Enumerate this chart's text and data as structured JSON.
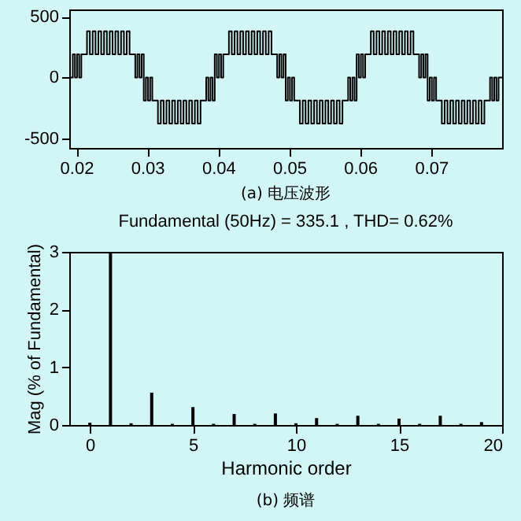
{
  "chart_data": [
    {
      "type": "step",
      "color": "#000000",
      "xlim": [
        0.019,
        0.08
      ],
      "xticks": [
        0.02,
        0.03,
        0.04,
        0.05,
        0.06,
        0.07
      ],
      "ylim": [
        -580,
        560
      ],
      "yticks": [
        -500,
        0,
        500
      ],
      "annotations": [
        "(a) 电压波形"
      ],
      "x": [
        0.019,
        0.0195,
        0.0198,
        0.0201,
        0.0204,
        0.0207,
        0.0215,
        0.0219,
        0.0223,
        0.0227,
        0.0231,
        0.0235,
        0.0239,
        0.0243,
        0.0247,
        0.0251,
        0.0255,
        0.0259,
        0.0263,
        0.0267,
        0.0271,
        0.0275,
        0.0283,
        0.0286,
        0.0289,
        0.0292,
        0.0295,
        0.0298,
        0.0301,
        0.0304,
        0.0307,
        0.0315,
        0.0319,
        0.0323,
        0.0327,
        0.0331,
        0.0335,
        0.0339,
        0.0343,
        0.0347,
        0.0351,
        0.0355,
        0.0359,
        0.0363,
        0.0367,
        0.0371,
        0.0375,
        0.0383,
        0.0386,
        0.0389,
        0.0392,
        0.0395,
        0.0398,
        0.0401,
        0.0404,
        0.0407,
        0.0415,
        0.0419,
        0.0423,
        0.0427,
        0.0431,
        0.0435,
        0.0439,
        0.0443,
        0.0447,
        0.0451,
        0.0455,
        0.0459,
        0.0463,
        0.0467,
        0.0471,
        0.0475,
        0.0483,
        0.0486,
        0.0489,
        0.0492,
        0.0495,
        0.0498,
        0.0501,
        0.0504,
        0.0507,
        0.0515,
        0.0519,
        0.0523,
        0.0527,
        0.0531,
        0.0535,
        0.0539,
        0.0543,
        0.0547,
        0.0551,
        0.0555,
        0.0559,
        0.0563,
        0.0567,
        0.0571,
        0.0575,
        0.0583,
        0.0586,
        0.0589,
        0.0592,
        0.0595,
        0.0598,
        0.0601,
        0.0604,
        0.0607,
        0.0615,
        0.0619,
        0.0623,
        0.0627,
        0.0631,
        0.0635,
        0.0639,
        0.0643,
        0.0647,
        0.0651,
        0.0655,
        0.0659,
        0.0663,
        0.0667,
        0.0671,
        0.0675,
        0.0683,
        0.0686,
        0.0689,
        0.0692,
        0.0695,
        0.0698,
        0.0701,
        0.0704,
        0.0707,
        0.0715,
        0.0719,
        0.0723,
        0.0727,
        0.0731,
        0.0735,
        0.0739,
        0.0743,
        0.0747,
        0.0751,
        0.0755,
        0.0759,
        0.0763,
        0.0767,
        0.0771,
        0.0775,
        0.0783,
        0.0786,
        0.0789,
        0.0792,
        0.0795,
        0.08
      ],
      "values": [
        0,
        190,
        0,
        190,
        0,
        190,
        380,
        190,
        380,
        190,
        380,
        190,
        380,
        190,
        380,
        190,
        380,
        190,
        380,
        190,
        380,
        190,
        0,
        190,
        0,
        190,
        -190,
        0,
        -190,
        0,
        -190,
        -380,
        -190,
        -380,
        -190,
        -380,
        -190,
        -380,
        -190,
        -380,
        -190,
        -380,
        -190,
        -380,
        -190,
        -380,
        -190,
        0,
        -190,
        0,
        -190,
        190,
        0,
        190,
        0,
        190,
        380,
        190,
        380,
        190,
        380,
        190,
        380,
        190,
        380,
        190,
        380,
        190,
        380,
        190,
        380,
        190,
        0,
        190,
        0,
        190,
        -190,
        0,
        -190,
        0,
        -190,
        -380,
        -190,
        -380,
        -190,
        -380,
        -190,
        -380,
        -190,
        -380,
        -190,
        -380,
        -190,
        -380,
        -190,
        -380,
        -190,
        0,
        -190,
        0,
        -190,
        190,
        0,
        190,
        0,
        190,
        380,
        190,
        380,
        190,
        380,
        190,
        380,
        190,
        380,
        190,
        380,
        190,
        380,
        190,
        380,
        190,
        0,
        190,
        0,
        190,
        -190,
        0,
        -190,
        0,
        -190,
        -380,
        -190,
        -380,
        -190,
        -380,
        -190,
        -380,
        -190,
        -380,
        -190,
        -380,
        -190,
        -380,
        -190,
        -380,
        -190,
        0,
        -190,
        0,
        -190,
        0,
        0
      ]
    },
    {
      "type": "bar",
      "title": "Fundamental (50Hz) = 335.1 , THD= 0.62%",
      "xlabel": "Harmonic order",
      "ylabel": "Mag (% of Fundamental)",
      "color": "#000000",
      "xlim": [
        -1,
        20
      ],
      "xticks": [
        0,
        5,
        10,
        15,
        20
      ],
      "ylim": [
        0,
        3
      ],
      "yticks": [
        0,
        1,
        2,
        3
      ],
      "annotations": [
        "(b) 频谱"
      ],
      "x": [
        0,
        1,
        2,
        3,
        4,
        5,
        6,
        7,
        8,
        9,
        10,
        11,
        12,
        13,
        14,
        15,
        16,
        17,
        18,
        19
      ],
      "values": [
        0.04,
        3,
        0.03,
        0.56,
        0.02,
        0.31,
        0.02,
        0.19,
        0.02,
        0.2,
        0.03,
        0.12,
        0.02,
        0.16,
        0.02,
        0.11,
        0.02,
        0.16,
        0.02,
        0.05
      ]
    }
  ]
}
